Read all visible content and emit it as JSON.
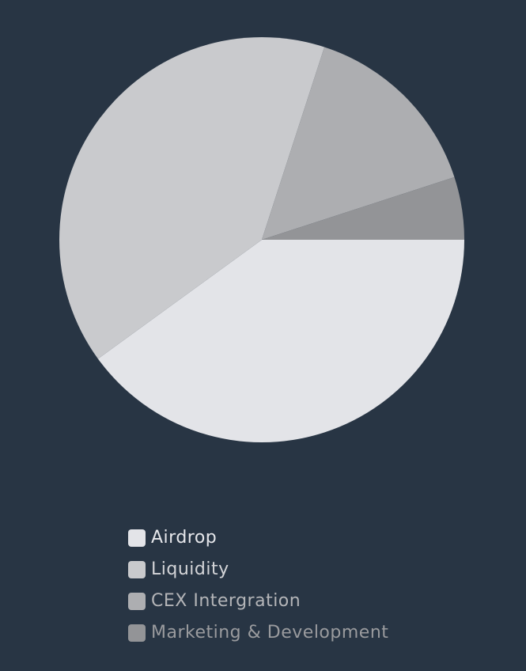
{
  "chart_data": {
    "type": "pie",
    "title": "",
    "slices": [
      {
        "label": "Airdrop",
        "value": 40,
        "color": "#e3e4e8",
        "label_color": "#e6e7eb"
      },
      {
        "label": "Liquidity",
        "value": 40,
        "color": "#c9cacd",
        "label_color": "#d4d5d8"
      },
      {
        "label": "CEX Intergration",
        "value": 15,
        "color": "#adaeb1",
        "label_color": "#b4b5b8"
      },
      {
        "label": "Marketing & Development",
        "value": 5,
        "color": "#939497",
        "label_color": "#9a9b9e"
      }
    ],
    "start_angle_deg": 0,
    "direction": "clockwise",
    "legend_position": "bottom",
    "background": "#283544"
  }
}
